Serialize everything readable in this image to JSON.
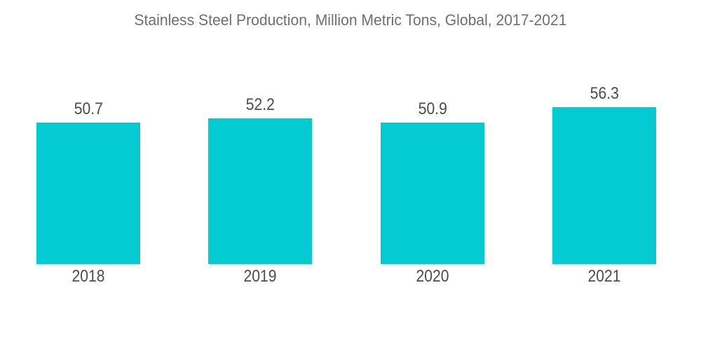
{
  "title": "Stainless Steel Production, Million Metric Tons, Global, 2017-2021",
  "colors": {
    "bar": "#04cbd1",
    "title_text": "#6f6f6f",
    "label_text": "#4c4c4c",
    "background": "#ffffff"
  },
  "chart_data": {
    "type": "bar",
    "title": "Stainless Steel Production, Million Metric Tons, Global, 2017-2021",
    "categories": [
      "2018",
      "2019",
      "2020",
      "2021"
    ],
    "values": [
      50.7,
      52.2,
      50.9,
      56.3
    ],
    "value_labels": [
      "50.7",
      "52.2",
      "50.9",
      "56.3"
    ],
    "xlabel": "",
    "ylabel": "",
    "ylim": [
      0,
      60
    ],
    "grid": false,
    "legend": false,
    "axes_shown": false,
    "bar_color": "#04cbd1"
  }
}
